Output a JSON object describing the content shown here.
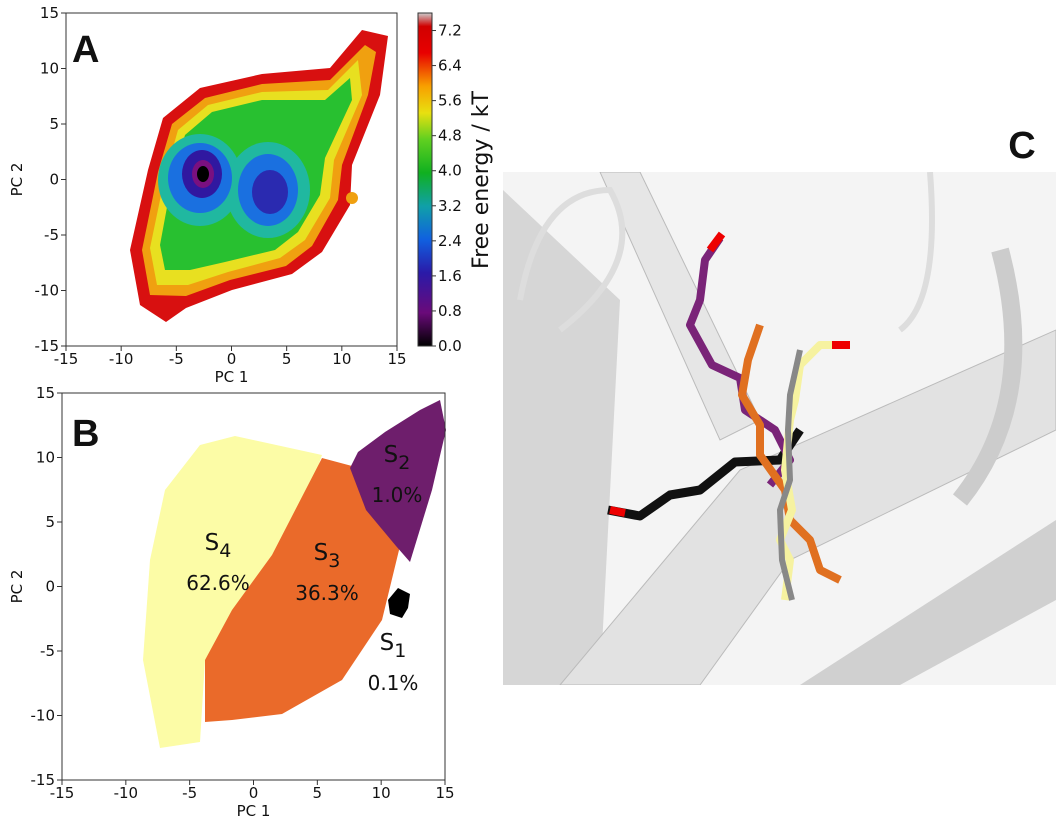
{
  "chart_data": [
    {
      "type": "heatmap",
      "panel_label": "A",
      "xlabel": "PC 1",
      "ylabel": "PC 2",
      "xlim": [
        -15,
        15
      ],
      "ylim": [
        -15,
        15
      ],
      "xticks": [
        -15,
        -10,
        -5,
        0,
        5,
        10,
        15
      ],
      "yticks": [
        -15,
        -10,
        -5,
        0,
        5,
        10,
        15
      ],
      "colorbar": {
        "label": "Free energy / kT",
        "lim": [
          0,
          7.6
        ],
        "ticks": [
          {
            "value": 0,
            "label": "0.0"
          },
          0.8,
          1.6,
          2.4,
          3.2,
          {
            "value": 4,
            "label": "4.0"
          },
          4.8,
          5.6,
          6.4,
          7.2
        ]
      }
    },
    {
      "type": "regions",
      "panel_label": "B",
      "xlabel": "PC 1",
      "ylabel": "PC 2",
      "xlim": [
        -15,
        15
      ],
      "ylim": [
        -15,
        15
      ],
      "xticks": [
        -15,
        -10,
        -5,
        0,
        5,
        10,
        15
      ],
      "yticks": [
        -15,
        -10,
        -5,
        0,
        5,
        10,
        15
      ],
      "categories": [
        "S4",
        "S3",
        "S2",
        "S1"
      ],
      "values": [
        62.6,
        36.3,
        1.0,
        0.1
      ],
      "value_labels": [
        "62.6%",
        "36.3%",
        "1.0%",
        "0.1%"
      ],
      "colors": [
        "#fcfca6",
        "#ea6a2a",
        "#6e1e6c",
        "#000000"
      ]
    }
  ],
  "panel_c": {
    "label": "C"
  }
}
